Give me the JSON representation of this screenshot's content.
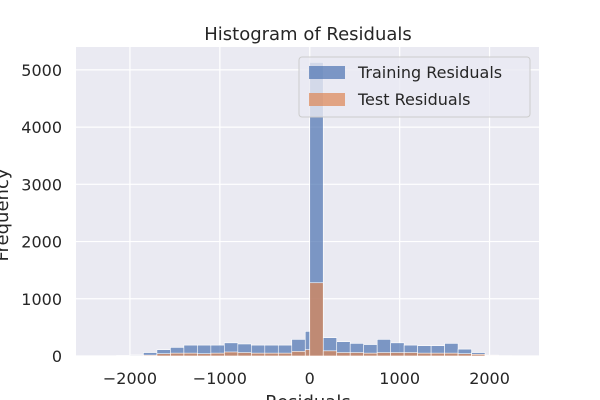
{
  "chart_data": {
    "type": "bar",
    "title": "Histogram of Residuals",
    "xlabel": "Residuals",
    "ylabel": "Frequency",
    "xlim": [
      -2600,
      2550
    ],
    "ylim": [
      0,
      5400
    ],
    "xticks": [
      -2000,
      -1000,
      0,
      1000,
      2000
    ],
    "xtick_labels": [
      "−2000",
      "−1000",
      "0",
      "1000",
      "2000"
    ],
    "yticks": [
      0,
      1000,
      2000,
      3000,
      4000,
      5000
    ],
    "ytick_labels": [
      "0",
      "1000",
      "2000",
      "3000",
      "4000",
      "5000"
    ],
    "grid": true,
    "legend": "top-right",
    "series": [
      {
        "name": "Training Residuals",
        "color": "#4c72b0",
        "bins": [
          [
            -2150,
            -2000,
            10
          ],
          [
            -2000,
            -1850,
            20
          ],
          [
            -1850,
            -1700,
            60
          ],
          [
            -1700,
            -1550,
            110
          ],
          [
            -1550,
            -1400,
            150
          ],
          [
            -1400,
            -1250,
            190
          ],
          [
            -1250,
            -1100,
            190
          ],
          [
            -1100,
            -950,
            190
          ],
          [
            -950,
            -800,
            230
          ],
          [
            -800,
            -650,
            210
          ],
          [
            -650,
            -500,
            190
          ],
          [
            -500,
            -350,
            190
          ],
          [
            -350,
            -200,
            190
          ],
          [
            -200,
            -50,
            290
          ],
          [
            -50,
            0,
            430
          ],
          [
            0,
            150,
            5130
          ],
          [
            150,
            300,
            320
          ],
          [
            300,
            450,
            250
          ],
          [
            450,
            600,
            220
          ],
          [
            600,
            750,
            200
          ],
          [
            750,
            900,
            290
          ],
          [
            900,
            1050,
            230
          ],
          [
            1050,
            1200,
            190
          ],
          [
            1200,
            1350,
            180
          ],
          [
            1350,
            1500,
            180
          ],
          [
            1500,
            1650,
            220
          ],
          [
            1650,
            1800,
            120
          ],
          [
            1800,
            1950,
            60
          ],
          [
            1950,
            2100,
            15
          ],
          [
            2100,
            2250,
            5
          ]
        ]
      },
      {
        "name": "Test Residuals",
        "color": "#dd8452",
        "bins": [
          [
            -2150,
            -2000,
            5
          ],
          [
            -2000,
            -1850,
            10
          ],
          [
            -1850,
            -1700,
            15
          ],
          [
            -1700,
            -1550,
            40
          ],
          [
            -1550,
            -1400,
            50
          ],
          [
            -1400,
            -1250,
            50
          ],
          [
            -1250,
            -1100,
            40
          ],
          [
            -1100,
            -950,
            50
          ],
          [
            -950,
            -800,
            70
          ],
          [
            -800,
            -650,
            60
          ],
          [
            -650,
            -500,
            50
          ],
          [
            -500,
            -350,
            50
          ],
          [
            -350,
            -200,
            50
          ],
          [
            -200,
            -50,
            80
          ],
          [
            -50,
            0,
            110
          ],
          [
            0,
            150,
            1280
          ],
          [
            150,
            300,
            90
          ],
          [
            300,
            450,
            60
          ],
          [
            450,
            600,
            60
          ],
          [
            600,
            750,
            50
          ],
          [
            750,
            900,
            60
          ],
          [
            900,
            1050,
            60
          ],
          [
            1050,
            1200,
            60
          ],
          [
            1200,
            1350,
            50
          ],
          [
            1350,
            1500,
            50
          ],
          [
            1500,
            1650,
            50
          ],
          [
            1650,
            1800,
            40
          ],
          [
            1800,
            1950,
            30
          ],
          [
            1950,
            2100,
            10
          ],
          [
            2100,
            2250,
            5
          ]
        ]
      }
    ]
  }
}
